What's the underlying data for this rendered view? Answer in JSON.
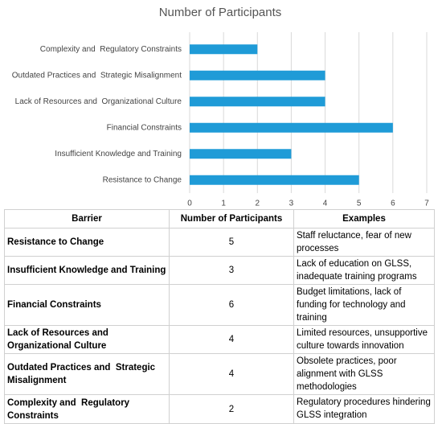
{
  "chart_data": {
    "type": "bar",
    "orientation": "horizontal",
    "title": "Number of Participants",
    "categories": [
      "Complexity and  Regulatory Constraints",
      "Outdated Practices and  Strategic Misalignment",
      "Lack of Resources and  Organizational Culture",
      "Financial Constraints",
      "Insufficient Knowledge and Training",
      "Resistance to Change"
    ],
    "values": [
      2,
      4,
      4,
      6,
      3,
      5
    ],
    "color": "#1f9bd7",
    "xlim": [
      0,
      7
    ],
    "xticks": [
      0,
      1,
      2,
      3,
      4,
      5,
      6,
      7
    ],
    "grid": true
  },
  "table": {
    "header": [
      "Barrier",
      "Number of Participants",
      "Examples"
    ],
    "rows": [
      [
        "Resistance to Change",
        5,
        "Staff reluctance, fear of new processes"
      ],
      [
        "Insufficient Knowledge and Training",
        3,
        "Lack of education on GLSS, inadequate training programs"
      ],
      [
        "Financial Constraints",
        6,
        "Budget limitations, lack of funding for technology and training"
      ],
      [
        "Lack of Resources and Organizational Culture",
        4,
        "Limited resources, unsupportive culture towards innovation"
      ],
      [
        "Outdated Practices and  Strategic Misalignment",
        4,
        "Obsolete practices, poor alignment with GLSS methodologies"
      ],
      [
        "Complexity and  Regulatory Constraints",
        2,
        "Regulatory procedures hindering GLSS integration"
      ]
    ]
  }
}
